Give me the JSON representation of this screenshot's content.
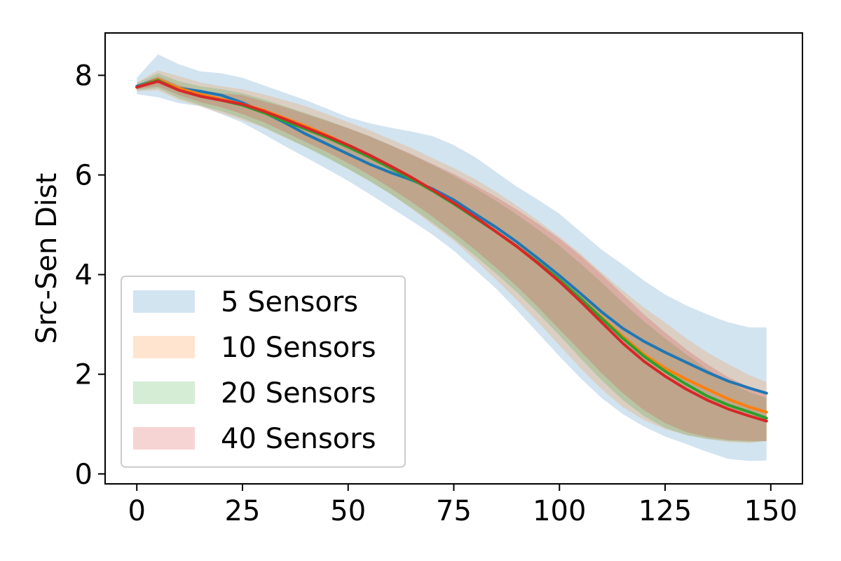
{
  "chart_data": {
    "type": "line",
    "title": "",
    "xlabel": "",
    "ylabel": "Src-Sen Dist",
    "xlim": [
      -7.5,
      157.5
    ],
    "ylim": [
      -0.2,
      8.85
    ],
    "x_ticks": [
      0,
      25,
      50,
      75,
      100,
      125,
      150
    ],
    "y_ticks": [
      0,
      2,
      4,
      6,
      8
    ],
    "grid": false,
    "legend_position": "lower-left",
    "x": [
      0,
      5,
      10,
      15,
      20,
      25,
      30,
      35,
      40,
      45,
      50,
      55,
      60,
      65,
      70,
      75,
      80,
      85,
      90,
      95,
      100,
      105,
      110,
      115,
      120,
      125,
      130,
      135,
      140,
      145,
      149
    ],
    "series": [
      {
        "name": "5 Sensors",
        "color": "#1f77b4",
        "mean": [
          7.78,
          7.92,
          7.74,
          7.68,
          7.6,
          7.45,
          7.26,
          7.05,
          6.82,
          6.62,
          6.42,
          6.22,
          6.05,
          5.9,
          5.72,
          5.5,
          5.22,
          4.95,
          4.65,
          4.32,
          3.98,
          3.62,
          3.25,
          2.92,
          2.66,
          2.44,
          2.24,
          2.04,
          1.86,
          1.72,
          1.62
        ],
        "lower": [
          7.62,
          7.56,
          7.44,
          7.38,
          7.22,
          7.05,
          6.82,
          6.58,
          6.35,
          6.12,
          5.88,
          5.62,
          5.35,
          5.08,
          4.8,
          4.48,
          4.1,
          3.72,
          3.28,
          2.82,
          2.36,
          1.92,
          1.52,
          1.2,
          0.95,
          0.75,
          0.6,
          0.44,
          0.3,
          0.26,
          0.27
        ],
        "upper": [
          7.95,
          8.42,
          8.22,
          8.08,
          8.04,
          7.95,
          7.8,
          7.65,
          7.5,
          7.33,
          7.16,
          7.04,
          6.95,
          6.87,
          6.78,
          6.6,
          6.36,
          6.06,
          5.76,
          5.5,
          5.22,
          4.86,
          4.5,
          4.2,
          3.88,
          3.6,
          3.38,
          3.2,
          3.04,
          2.94,
          2.94
        ]
      },
      {
        "name": "10 Sensors",
        "color": "#ff7f0e",
        "mean": [
          7.76,
          7.92,
          7.74,
          7.62,
          7.52,
          7.42,
          7.3,
          7.14,
          6.98,
          6.8,
          6.6,
          6.4,
          6.18,
          5.95,
          5.7,
          5.44,
          5.16,
          4.86,
          4.55,
          4.22,
          3.88,
          3.52,
          3.14,
          2.76,
          2.4,
          2.12,
          1.9,
          1.7,
          1.5,
          1.34,
          1.24
        ],
        "lower": [
          7.68,
          7.7,
          7.5,
          7.38,
          7.24,
          7.1,
          6.95,
          6.75,
          6.56,
          6.36,
          6.12,
          5.88,
          5.62,
          5.32,
          5.0,
          4.68,
          4.3,
          3.9,
          3.48,
          3.04,
          2.58,
          2.12,
          1.7,
          1.34,
          1.08,
          0.9,
          0.78,
          0.7,
          0.64,
          0.62,
          0.66
        ],
        "upper": [
          7.86,
          8.1,
          7.98,
          7.86,
          7.78,
          7.72,
          7.62,
          7.5,
          7.38,
          7.22,
          7.06,
          6.9,
          6.72,
          6.54,
          6.34,
          6.14,
          5.92,
          5.66,
          5.38,
          5.08,
          4.76,
          4.42,
          4.04,
          3.68,
          3.34,
          3.04,
          2.72,
          2.44,
          2.2,
          1.98,
          1.84
        ]
      },
      {
        "name": "20 Sensors",
        "color": "#2ca02c",
        "mean": [
          7.76,
          7.9,
          7.7,
          7.58,
          7.5,
          7.4,
          7.25,
          7.08,
          6.92,
          6.75,
          6.56,
          6.36,
          6.14,
          5.92,
          5.68,
          5.42,
          5.14,
          4.86,
          4.56,
          4.24,
          3.9,
          3.52,
          3.12,
          2.72,
          2.36,
          2.06,
          1.8,
          1.56,
          1.38,
          1.24,
          1.12
        ],
        "lower": [
          7.7,
          7.74,
          7.54,
          7.4,
          7.28,
          7.14,
          6.96,
          6.76,
          6.56,
          6.34,
          6.12,
          5.88,
          5.62,
          5.34,
          5.04,
          4.72,
          4.38,
          4.02,
          3.64,
          3.22,
          2.78,
          2.32,
          1.88,
          1.48,
          1.16,
          0.92,
          0.78,
          0.7,
          0.66,
          0.64,
          0.66
        ],
        "upper": [
          7.84,
          8.04,
          7.88,
          7.78,
          7.72,
          7.64,
          7.52,
          7.38,
          7.24,
          7.1,
          6.94,
          6.78,
          6.6,
          6.4,
          6.2,
          5.98,
          5.74,
          5.48,
          5.2,
          4.9,
          4.58,
          4.22,
          3.84,
          3.44,
          3.06,
          2.72,
          2.4,
          2.1,
          1.84,
          1.64,
          1.52
        ]
      },
      {
        "name": "40 Sensors",
        "color": "#d62728",
        "mean": [
          7.76,
          7.88,
          7.7,
          7.58,
          7.5,
          7.42,
          7.28,
          7.12,
          6.95,
          6.78,
          6.6,
          6.4,
          6.18,
          5.95,
          5.7,
          5.44,
          5.16,
          4.86,
          4.56,
          4.22,
          3.86,
          3.46,
          3.04,
          2.62,
          2.26,
          1.96,
          1.7,
          1.48,
          1.3,
          1.16,
          1.06
        ],
        "lower": [
          7.72,
          7.78,
          7.6,
          7.46,
          7.36,
          7.22,
          7.06,
          6.86,
          6.66,
          6.46,
          6.24,
          6.0,
          5.74,
          5.46,
          5.16,
          4.84,
          4.5,
          4.14,
          3.76,
          3.34,
          2.9,
          2.46,
          2.02,
          1.62,
          1.28,
          1.02,
          0.84,
          0.74,
          0.68,
          0.66,
          0.66
        ],
        "upper": [
          7.8,
          7.98,
          7.8,
          7.7,
          7.64,
          7.6,
          7.48,
          7.36,
          7.22,
          7.08,
          6.94,
          6.78,
          6.6,
          6.42,
          6.22,
          6.02,
          5.8,
          5.56,
          5.3,
          5.02,
          4.72,
          4.38,
          4.0,
          3.6,
          3.2,
          2.84,
          2.5,
          2.2,
          1.94,
          1.74,
          1.6
        ]
      }
    ]
  }
}
